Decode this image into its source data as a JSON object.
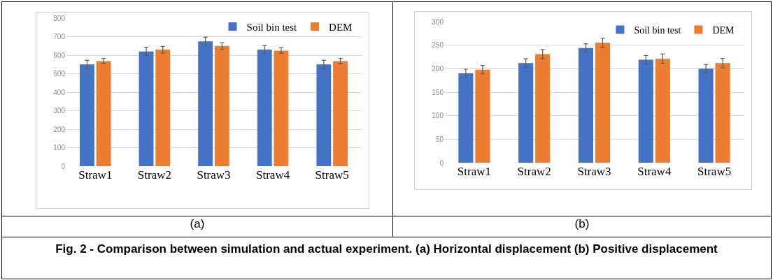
{
  "chart_data": [
    {
      "type": "bar",
      "categories": [
        "Straw1",
        "Straw2",
        "Straw3",
        "Straw4",
        "Straw5"
      ],
      "series": [
        {
          "name": "Soil bin test",
          "color": "#4472c4",
          "values": [
            550,
            620,
            675,
            630,
            550
          ],
          "errors": [
            22,
            22,
            22,
            22,
            22
          ]
        },
        {
          "name": "DEM",
          "color": "#ed7d31",
          "values": [
            568,
            630,
            650,
            625,
            568
          ],
          "errors": [
            15,
            18,
            18,
            15,
            15
          ]
        }
      ],
      "ylim": [
        0,
        800
      ],
      "yticks": [
        0,
        100,
        200,
        300,
        400,
        500,
        600,
        700,
        800
      ],
      "grid": "y",
      "legend": "top right",
      "annotations": [
        "(a)",
        "Fig. 2 - Comparison between simulation and actual experiment. (a) Horizontal displacement (b) Positive displacement"
      ]
    },
    {
      "type": "bar",
      "categories": [
        "Straw1",
        "Straw2",
        "Straw3",
        "Straw4",
        "Straw5"
      ],
      "series": [
        {
          "name": "Soil bin test",
          "color": "#4472c4",
          "values": [
            190,
            212,
            244,
            219,
            200
          ],
          "errors": [
            9,
            9,
            9,
            9,
            9
          ]
        },
        {
          "name": "DEM",
          "color": "#ed7d31",
          "values": [
            198,
            231,
            255,
            221,
            212
          ],
          "errors": [
            9,
            10,
            10,
            10,
            10
          ]
        }
      ],
      "ylim": [
        0,
        300
      ],
      "yticks": [
        0,
        50,
        100,
        150,
        200,
        250,
        300
      ],
      "grid": "y",
      "legend": "top right",
      "annotations": [
        "(b)"
      ]
    }
  ]
}
